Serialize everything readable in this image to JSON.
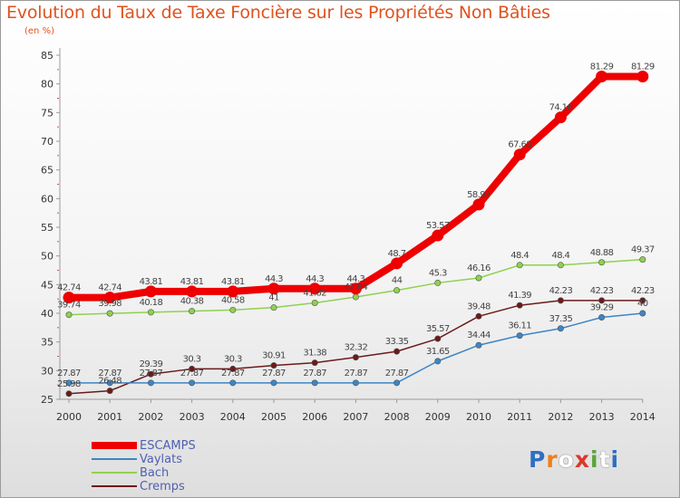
{
  "header": {
    "title": "Evolution du Taux de Taxe Foncière sur les Propriétés Non Bâties",
    "unit": "(en %)"
  },
  "logo": {
    "text": "Proxiti",
    "letter_colors": [
      "#2f6fc0",
      "#f07f1a",
      "#ffffff",
      "#d93a2a",
      "#5aa53c",
      "#ffffff",
      "#2f6fc0"
    ]
  },
  "chart_data": {
    "type": "line",
    "title": "Evolution du Taux de Taxe Foncière sur les Propriétés Non Bâties",
    "ylabel": "(en %)",
    "xlabel": "",
    "x": [
      "2000",
      "2001",
      "2002",
      "2003",
      "2004",
      "2005",
      "2006",
      "2007",
      "2008",
      "2009",
      "2010",
      "2011",
      "2012",
      "2013",
      "2014"
    ],
    "ylim": [
      25,
      85
    ],
    "yticks": [
      25,
      30,
      35,
      40,
      45,
      50,
      55,
      60,
      65,
      70,
      75,
      80,
      85
    ],
    "grid": false,
    "legend_position": "bottom-left",
    "series": [
      {
        "name": "ESCAMPS",
        "color": "#ee0000",
        "values": [
          42.74,
          42.74,
          43.81,
          43.81,
          43.81,
          44.3,
          44.3,
          44.3,
          48.7,
          53.57,
          58.97,
          67.68,
          74.16,
          81.29,
          81.29
        ],
        "labels": [
          "42.74",
          "42.74",
          "43.81",
          "43.81",
          "43.81",
          "44.3",
          "44.3",
          "44.3",
          "48.7",
          "53.57",
          "58.97",
          "67.68",
          "74.16",
          "81.29",
          "81.29"
        ]
      },
      {
        "name": "Vaylats",
        "color": "#3d85c6",
        "values": [
          27.87,
          27.87,
          27.87,
          27.87,
          27.87,
          27.87,
          27.87,
          27.87,
          27.87,
          31.65,
          34.44,
          36.11,
          37.35,
          39.29,
          40
        ],
        "labels": [
          "27.87",
          "27.87",
          "27.87",
          "27.87",
          "27.87",
          "27.87",
          "27.87",
          "27.87",
          "27.87",
          "31.65",
          "34.44",
          "36.11",
          "37.35",
          "39.29",
          "40"
        ]
      },
      {
        "name": "Bach",
        "color": "#8fd14f",
        "values": [
          39.74,
          39.98,
          40.18,
          40.38,
          40.58,
          41,
          41.82,
          42.84,
          44,
          45.3,
          46.16,
          48.4,
          48.4,
          48.88,
          49.37
        ],
        "labels": [
          "39.74",
          "39.98",
          "40.18",
          "40.38",
          "40.58",
          "41",
          "41.82",
          "42.84",
          "44",
          "45.3",
          "46.16",
          "48.4",
          "48.4",
          "48.88",
          "49.37"
        ]
      },
      {
        "name": "Cremps",
        "color": "#6b1a1a",
        "values": [
          25.98,
          26.48,
          29.39,
          30.3,
          30.3,
          30.91,
          31.38,
          32.32,
          33.35,
          35.57,
          39.48,
          41.39,
          42.23,
          42.23,
          42.23
        ],
        "labels": [
          "25.98",
          "26.48",
          "29.39",
          "30.3",
          "30.3",
          "30.91",
          "31.38",
          "32.32",
          "33.35",
          "35.57",
          "39.48",
          "41.39",
          "42.23",
          "42.23",
          "42.23"
        ]
      }
    ]
  }
}
